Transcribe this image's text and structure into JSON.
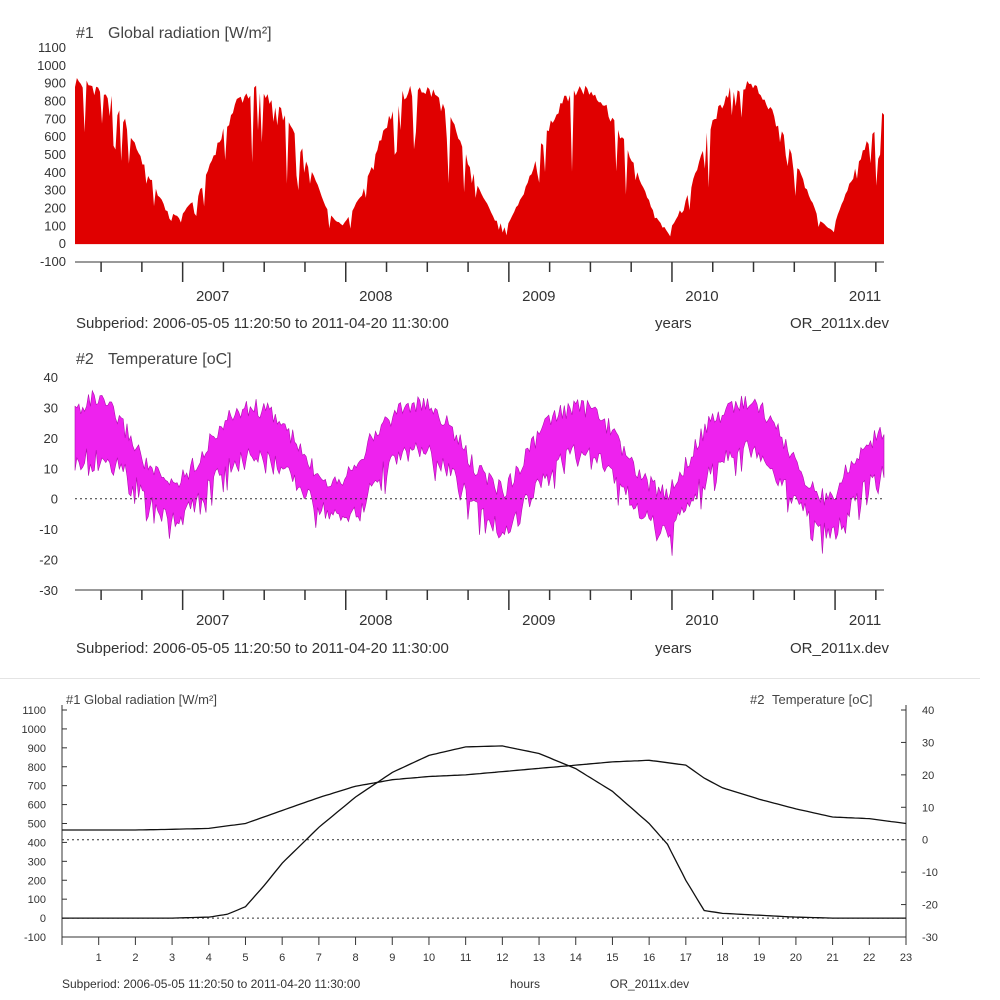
{
  "chart_data": [
    {
      "type": "area",
      "title": "Global radiation [W/m²]",
      "series_index_label": "#1",
      "color": "#e00000",
      "y_ticks": [
        -100,
        0,
        100,
        200,
        300,
        400,
        500,
        600,
        700,
        800,
        900,
        1000,
        1100
      ],
      "ylim": [
        -100,
        1100
      ],
      "x_year_labels": [
        "2007",
        "2008",
        "2009",
        "2010",
        "2011"
      ],
      "x_start_year": 2006.34,
      "x_end_year": 2011.3,
      "subtitle": "Subperiod: 2006-05-05 11:20:50 to 2011-04-20 11:30:00",
      "xlabel": "years",
      "file_label": "OR_2011x.dev",
      "x": [
        2006.34,
        2006.45,
        2006.55,
        2006.66,
        2006.78,
        2006.9,
        2006.98,
        2007.1,
        2007.22,
        2007.34,
        2007.45,
        2007.55,
        2007.66,
        2007.78,
        2007.9,
        2007.98,
        2008.1,
        2008.22,
        2008.34,
        2008.45,
        2008.55,
        2008.66,
        2008.78,
        2008.9,
        2008.98,
        2009.1,
        2009.22,
        2009.34,
        2009.45,
        2009.55,
        2009.66,
        2009.78,
        2009.9,
        2009.98,
        2010.1,
        2010.22,
        2010.34,
        2010.45,
        2010.55,
        2010.66,
        2010.78,
        2010.9,
        2010.98,
        2011.1,
        2011.22,
        2011.3
      ],
      "values": [
        960,
        930,
        880,
        700,
        430,
        200,
        160,
        300,
        600,
        850,
        920,
        860,
        700,
        450,
        180,
        110,
        300,
        650,
        880,
        930,
        880,
        700,
        420,
        170,
        90,
        320,
        640,
        880,
        920,
        880,
        700,
        440,
        160,
        70,
        290,
        660,
        900,
        950,
        890,
        690,
        430,
        150,
        80,
        380,
        650,
        800
      ]
    },
    {
      "type": "area",
      "title": "Temperature [oC]",
      "series_index_label": "#2",
      "color": "#ee22ee",
      "y_ticks": [
        -30,
        -20,
        -10,
        0,
        10,
        20,
        30,
        40
      ],
      "ylim": [
        -30,
        40
      ],
      "x_year_labels": [
        "2007",
        "2008",
        "2009",
        "2010",
        "2011"
      ],
      "x_start_year": 2006.34,
      "x_end_year": 2011.3,
      "subtitle": "Subperiod: 2006-05-05 11:20:50 to 2011-04-20 11:30:00",
      "xlabel": "years",
      "file_label": "OR_2011x.dev",
      "x": [
        2006.34,
        2006.45,
        2006.55,
        2006.66,
        2006.78,
        2006.9,
        2006.98,
        2007.1,
        2007.22,
        2007.34,
        2007.45,
        2007.55,
        2007.66,
        2007.78,
        2007.9,
        2007.98,
        2008.1,
        2008.22,
        2008.34,
        2008.45,
        2008.55,
        2008.66,
        2008.78,
        2008.9,
        2008.98,
        2009.1,
        2009.22,
        2009.34,
        2009.45,
        2009.55,
        2009.66,
        2009.78,
        2009.9,
        2009.98,
        2010.1,
        2010.22,
        2010.34,
        2010.45,
        2010.55,
        2010.66,
        2010.78,
        2010.9,
        2010.98,
        2011.1,
        2011.22,
        2011.3
      ],
      "upper": [
        32,
        36,
        33,
        25,
        14,
        8,
        9,
        16,
        26,
        32,
        33,
        31,
        24,
        14,
        9,
        10,
        18,
        27,
        33,
        34,
        32,
        25,
        14,
        8,
        6,
        17,
        27,
        32,
        33,
        31,
        23,
        12,
        6,
        5,
        16,
        27,
        33,
        35,
        33,
        24,
        13,
        4,
        3,
        15,
        22,
        26
      ],
      "lower": [
        8,
        12,
        10,
        5,
        -3,
        -8,
        -10,
        -3,
        6,
        10,
        12,
        10,
        4,
        -3,
        -8,
        -10,
        -3,
        6,
        11,
        13,
        11,
        4,
        -4,
        -10,
        -15,
        -4,
        5,
        11,
        13,
        11,
        3,
        -5,
        -11,
        -15,
        -5,
        5,
        12,
        14,
        12,
        3,
        -5,
        -12,
        -15,
        -5,
        3,
        6
      ]
    },
    {
      "type": "line",
      "left_title": "Global radiation [W/m²]",
      "left_index_label": "#1",
      "right_title": "Temperature [oC]",
      "right_index_label": "#2",
      "y_ticks_left": [
        -100,
        0,
        100,
        200,
        300,
        400,
        500,
        600,
        700,
        800,
        900,
        1000,
        1100
      ],
      "ylim_left": [
        -100,
        1100
      ],
      "y_ticks_right": [
        -30,
        -20,
        -10,
        0,
        10,
        20,
        30,
        40
      ],
      "ylim_right": [
        -30,
        40
      ],
      "x_ticks": [
        "1",
        "2",
        "3",
        "4",
        "5",
        "6",
        "7",
        "8",
        "9",
        "10",
        "11",
        "12",
        "13",
        "14",
        "15",
        "16",
        "17",
        "18",
        "19",
        "20",
        "21",
        "22",
        "23"
      ],
      "xlim": [
        0,
        23
      ],
      "subtitle": "Subperiod: 2006-05-05 11:20:50 to 2011-04-20 11:30:00",
      "xlabel": "hours",
      "file_label": "OR_2011x.dev",
      "series": [
        {
          "name": "Global radiation",
          "axis": "left",
          "x": [
            0,
            1,
            2,
            3,
            4,
            4.5,
            5,
            5.5,
            6,
            7,
            8,
            9,
            10,
            11,
            12,
            13,
            14,
            15,
            16,
            16.5,
            17,
            17.5,
            18,
            19,
            20,
            21,
            22,
            23
          ],
          "values": [
            0,
            0,
            0,
            0,
            5,
            20,
            60,
            170,
            290,
            480,
            640,
            770,
            860,
            905,
            910,
            870,
            790,
            670,
            500,
            390,
            200,
            40,
            25,
            15,
            5,
            0,
            0,
            0
          ]
        },
        {
          "name": "Temperature",
          "axis": "right",
          "x": [
            0,
            1,
            2,
            3,
            4,
            5,
            6,
            7,
            8,
            9,
            10,
            11,
            12,
            13,
            14,
            15,
            16,
            17,
            17.5,
            18,
            19,
            20,
            21,
            22,
            23
          ],
          "values": [
            3,
            3,
            3,
            3.2,
            3.5,
            5,
            9,
            13,
            16.5,
            18.5,
            19.5,
            20,
            21,
            22,
            23,
            24,
            24.5,
            23,
            19,
            16,
            12.5,
            9.5,
            7,
            6.5,
            5
          ]
        }
      ]
    }
  ]
}
